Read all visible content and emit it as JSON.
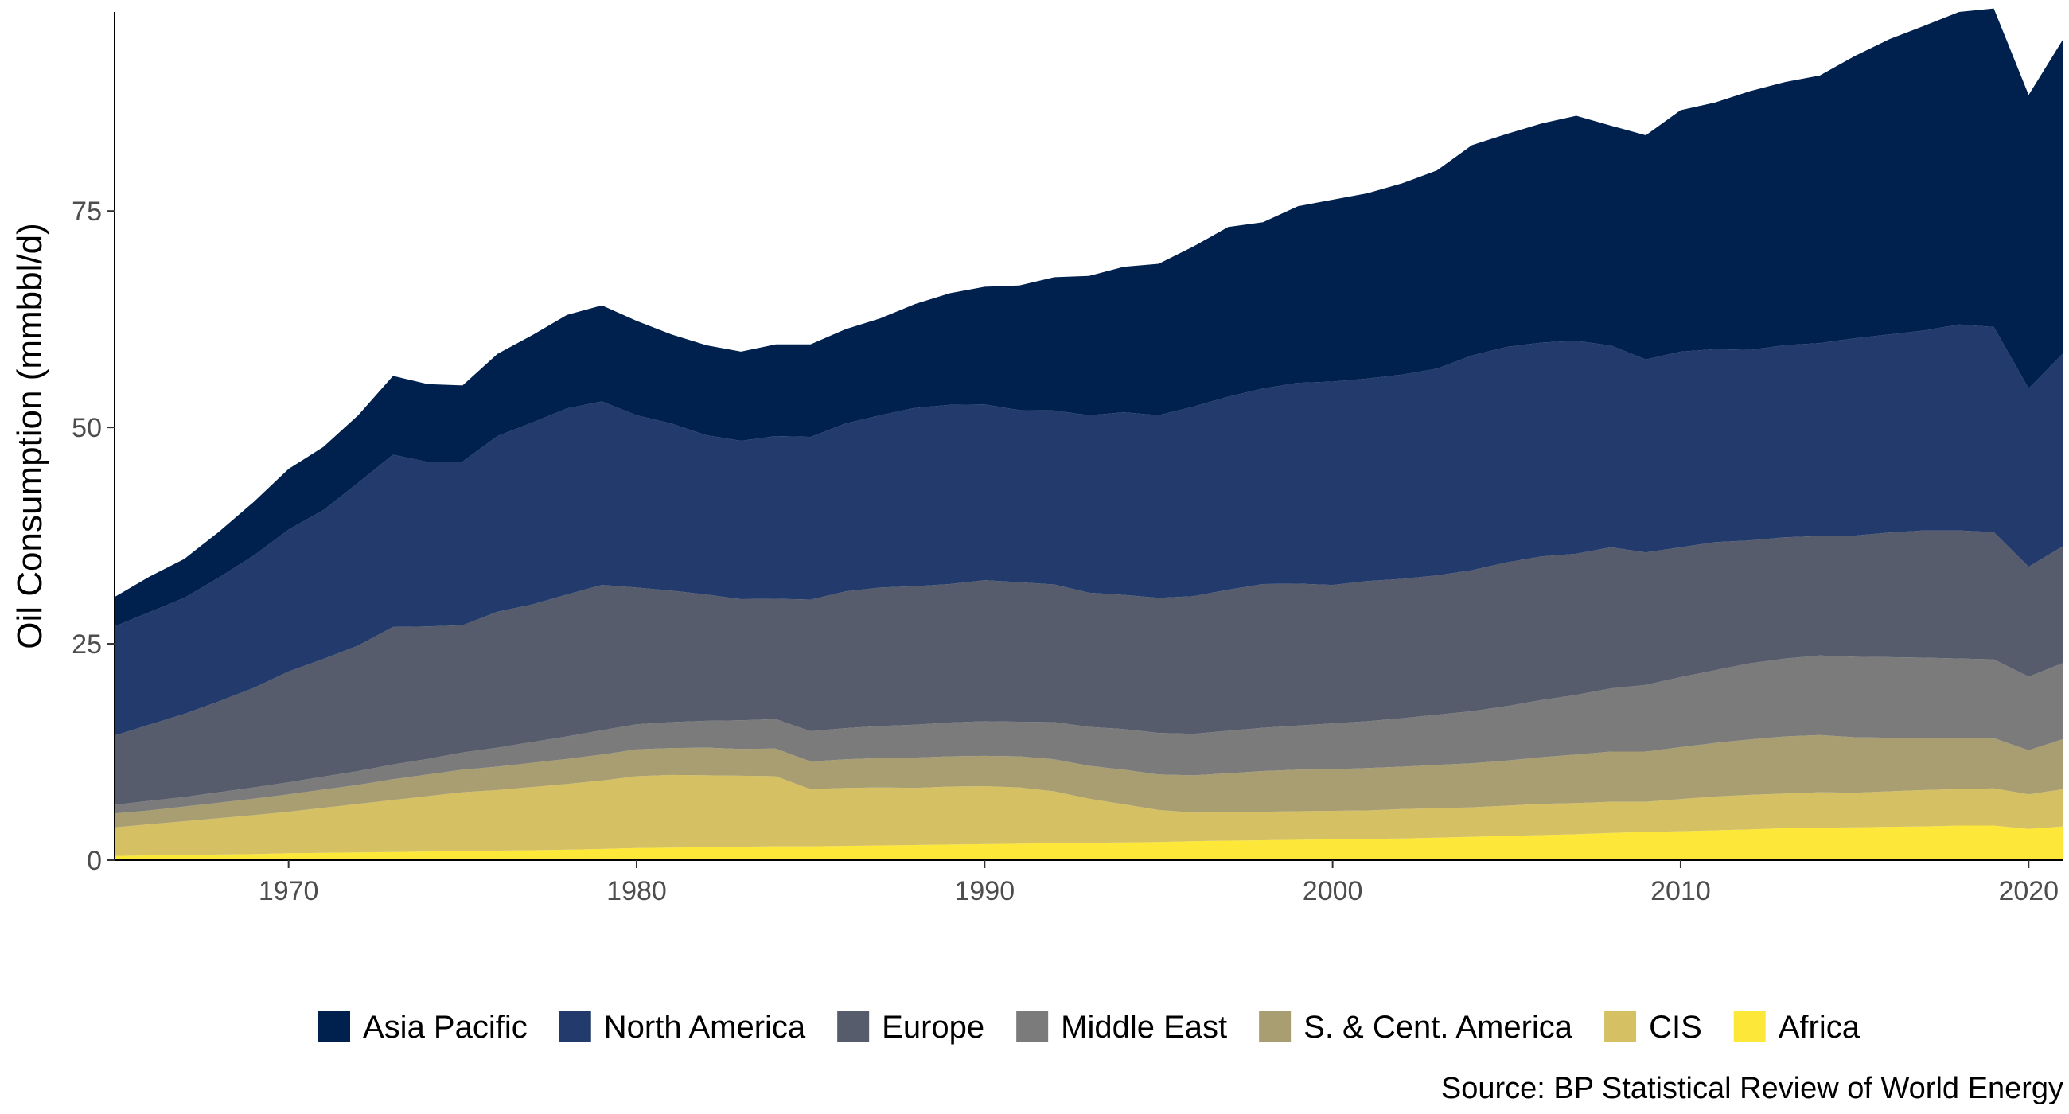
{
  "chart_data": {
    "type": "area",
    "stacked": true,
    "title": "",
    "xlabel": "",
    "ylabel": "Oil Consumption (mmbbl/d)",
    "caption": "Source: BP Statistical Review of World Energy",
    "xlim": [
      1965,
      2021
    ],
    "ylim": [
      0,
      98
    ],
    "x_ticks": [
      1970,
      1980,
      1990,
      2000,
      2010,
      2020
    ],
    "y_ticks": [
      0,
      25,
      50,
      75
    ],
    "grid": false,
    "legend_position": "bottom",
    "x": [
      1965,
      1966,
      1967,
      1968,
      1969,
      1970,
      1971,
      1972,
      1973,
      1974,
      1975,
      1976,
      1977,
      1978,
      1979,
      1980,
      1981,
      1982,
      1983,
      1984,
      1985,
      1986,
      1987,
      1988,
      1989,
      1990,
      1991,
      1992,
      1993,
      1994,
      1995,
      1996,
      1997,
      1998,
      1999,
      2000,
      2001,
      2002,
      2003,
      2004,
      2005,
      2006,
      2007,
      2008,
      2009,
      2010,
      2011,
      2012,
      2013,
      2014,
      2015,
      2016,
      2017,
      2018,
      2019,
      2020,
      2021
    ],
    "series": [
      {
        "name": "Africa",
        "color": "#FDE738",
        "values": [
          0.5,
          0.55,
          0.6,
          0.65,
          0.7,
          0.8,
          0.85,
          0.9,
          0.95,
          1.0,
          1.05,
          1.1,
          1.15,
          1.2,
          1.3,
          1.4,
          1.45,
          1.5,
          1.55,
          1.6,
          1.6,
          1.65,
          1.7,
          1.75,
          1.8,
          1.85,
          1.9,
          1.95,
          2.0,
          2.05,
          2.1,
          2.2,
          2.25,
          2.3,
          2.35,
          2.4,
          2.45,
          2.5,
          2.6,
          2.7,
          2.8,
          2.9,
          3.0,
          3.15,
          3.25,
          3.35,
          3.45,
          3.55,
          3.7,
          3.75,
          3.8,
          3.85,
          3.9,
          4.0,
          4.0,
          3.6,
          3.9
        ]
      },
      {
        "name": "CIS",
        "color": "#D5C164",
        "values": [
          3.3,
          3.6,
          3.9,
          4.2,
          4.5,
          4.8,
          5.2,
          5.6,
          6.0,
          6.4,
          6.8,
          7.0,
          7.3,
          7.6,
          7.9,
          8.3,
          8.4,
          8.3,
          8.2,
          8.1,
          6.6,
          6.7,
          6.7,
          6.6,
          6.7,
          6.7,
          6.5,
          6.0,
          5.1,
          4.4,
          3.7,
          3.3,
          3.3,
          3.3,
          3.3,
          3.3,
          3.3,
          3.4,
          3.4,
          3.4,
          3.5,
          3.6,
          3.6,
          3.6,
          3.5,
          3.7,
          3.9,
          4.0,
          4.0,
          4.1,
          4.0,
          4.1,
          4.2,
          4.2,
          4.3,
          4.0,
          4.3
        ]
      },
      {
        "name": "S. & Cent. America",
        "color": "#A89E71",
        "values": [
          1.6,
          1.6,
          1.7,
          1.8,
          1.9,
          2.0,
          2.1,
          2.2,
          2.4,
          2.5,
          2.6,
          2.7,
          2.8,
          2.9,
          3.0,
          3.1,
          3.1,
          3.2,
          3.1,
          3.2,
          3.2,
          3.3,
          3.4,
          3.5,
          3.5,
          3.5,
          3.6,
          3.7,
          3.8,
          4.0,
          4.1,
          4.3,
          4.5,
          4.7,
          4.8,
          4.8,
          4.9,
          4.9,
          5.0,
          5.1,
          5.2,
          5.4,
          5.6,
          5.8,
          5.8,
          6.0,
          6.2,
          6.4,
          6.6,
          6.6,
          6.4,
          6.2,
          6.0,
          5.9,
          5.8,
          5.1,
          5.8
        ]
      },
      {
        "name": "Middle East",
        "color": "#7B7B7C",
        "values": [
          1.0,
          1.1,
          1.1,
          1.2,
          1.3,
          1.4,
          1.5,
          1.6,
          1.7,
          1.8,
          2.0,
          2.2,
          2.4,
          2.6,
          2.8,
          2.9,
          3.0,
          3.1,
          3.3,
          3.4,
          3.5,
          3.6,
          3.7,
          3.8,
          3.9,
          4.0,
          4.0,
          4.3,
          4.5,
          4.7,
          4.8,
          4.8,
          4.9,
          5.0,
          5.1,
          5.3,
          5.4,
          5.6,
          5.8,
          6.0,
          6.3,
          6.6,
          6.9,
          7.3,
          7.7,
          8.1,
          8.4,
          8.8,
          9.0,
          9.2,
          9.3,
          9.3,
          9.3,
          9.2,
          9.1,
          8.5,
          8.8
        ]
      },
      {
        "name": "Europe",
        "color": "#565C6C",
        "values": [
          8.0,
          8.8,
          9.6,
          10.5,
          11.5,
          12.8,
          13.6,
          14.5,
          15.9,
          15.3,
          14.7,
          15.7,
          15.9,
          16.4,
          16.8,
          15.8,
          15.2,
          14.6,
          14.0,
          13.9,
          15.2,
          15.8,
          16.0,
          16.0,
          16.0,
          16.3,
          16.1,
          15.9,
          15.5,
          15.5,
          15.6,
          15.9,
          16.3,
          16.6,
          16.4,
          16.0,
          16.2,
          16.1,
          16.1,
          16.3,
          16.6,
          16.6,
          16.3,
          16.3,
          15.3,
          15.0,
          14.8,
          14.2,
          14.0,
          13.8,
          14.0,
          14.4,
          14.7,
          14.8,
          14.7,
          12.7,
          13.5
        ]
      },
      {
        "name": "North America",
        "color": "#223B6C",
        "values": [
          12.6,
          13.0,
          13.4,
          14.3,
          15.3,
          16.4,
          17.2,
          18.8,
          19.9,
          19.0,
          18.9,
          20.3,
          21.0,
          21.5,
          21.2,
          19.9,
          19.3,
          18.4,
          18.3,
          18.8,
          18.8,
          19.4,
          19.9,
          20.6,
          20.7,
          20.3,
          19.9,
          20.1,
          20.5,
          21.1,
          21.1,
          21.9,
          22.3,
          22.6,
          23.2,
          23.5,
          23.4,
          23.6,
          23.9,
          24.8,
          24.9,
          24.7,
          24.6,
          23.3,
          22.3,
          22.6,
          22.3,
          22.0,
          22.2,
          22.3,
          22.8,
          22.9,
          23.1,
          23.8,
          23.7,
          20.6,
          22.3
        ]
      },
      {
        "name": "Asia Pacific",
        "color": "#00204D",
        "values": [
          3.4,
          4.1,
          4.5,
          5.3,
          6.2,
          7.0,
          7.3,
          7.8,
          9.1,
          9.0,
          8.8,
          9.5,
          10.1,
          10.8,
          11.1,
          10.9,
          10.3,
          10.4,
          10.3,
          10.6,
          10.7,
          10.9,
          11.2,
          12.0,
          12.9,
          13.6,
          14.4,
          15.4,
          16.1,
          16.8,
          17.5,
          18.5,
          19.6,
          19.2,
          20.4,
          21.0,
          21.4,
          22.1,
          22.9,
          24.3,
          24.6,
          25.3,
          26.0,
          25.4,
          25.9,
          27.9,
          28.5,
          29.9,
          30.4,
          30.9,
          32.6,
          34.1,
          35.2,
          36.1,
          36.8,
          33.9,
          36.3
        ]
      }
    ]
  },
  "legend": {
    "items": [
      {
        "label": "Asia Pacific",
        "color": "#00204D"
      },
      {
        "label": "North America",
        "color": "#223B6C"
      },
      {
        "label": "Europe",
        "color": "#565C6C"
      },
      {
        "label": "Middle East",
        "color": "#7B7B7C"
      },
      {
        "label": "S. & Cent. America",
        "color": "#A89E71"
      },
      {
        "label": "CIS",
        "color": "#D5C164"
      },
      {
        "label": "Africa",
        "color": "#FDE738"
      }
    ]
  }
}
